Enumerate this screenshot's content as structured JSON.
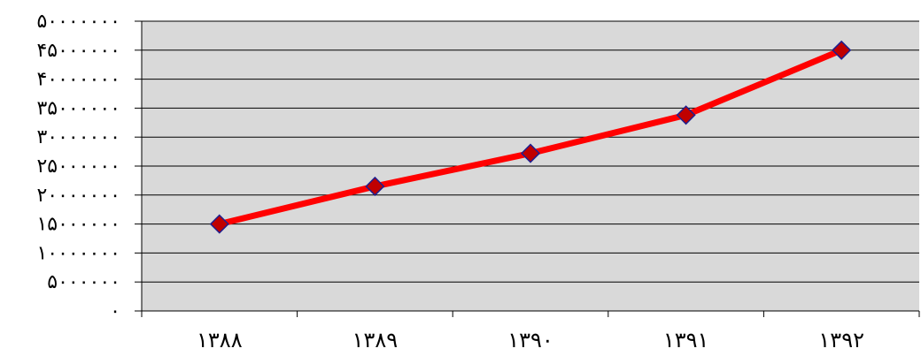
{
  "chart_data": {
    "type": "line",
    "categories": [
      "۱۳۸۸",
      "۱۳۸۹",
      "۱۳۹۰",
      "۱۳۹۱",
      "۱۳۹۲"
    ],
    "series": [
      {
        "values": [
          15000000,
          21500000,
          27200000,
          33800000,
          45000000
        ]
      }
    ],
    "ylim": [
      0,
      50000000
    ],
    "yticks": [
      0,
      5000000,
      10000000,
      15000000,
      20000000,
      25000000,
      30000000,
      35000000,
      40000000,
      45000000,
      50000000
    ],
    "ytick_labels": [
      "٠",
      "۵٠٠٠٠٠٠",
      "۱٠٠٠٠٠٠٠",
      "۱۵٠٠٠٠٠٠",
      "۲٠٠٠٠٠٠٠",
      "۲۵٠٠٠٠٠٠",
      "۳٠٠٠٠٠٠٠",
      "۳۵٠٠٠٠٠٠",
      "۴٠٠٠٠٠٠٠",
      "۴۵٠٠٠٠٠٠",
      "۵٠٠٠٠٠٠٠"
    ],
    "grid": true,
    "legend": "none",
    "colors": {
      "plot_background": "#d9d9d9",
      "gridline": "#000000",
      "line": "#ff0000",
      "marker_fill": "#c00000",
      "marker_stroke": "#1f1f8f"
    }
  }
}
